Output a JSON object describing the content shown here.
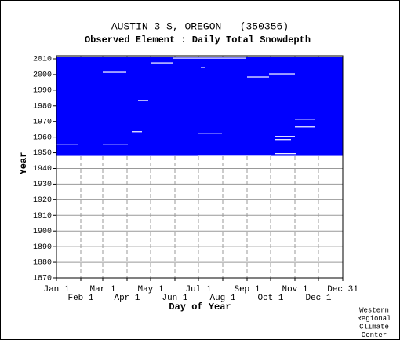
{
  "chart_data": {
    "type": "availability",
    "title": "AUSTIN 3 S, OREGON   (350356)",
    "subtitle": "Observed Element : Daily Total Snowdepth",
    "x_label": "Day of Year",
    "y_label": "Year",
    "footer": [
      "Western",
      "Regional",
      "Climate",
      "Center"
    ],
    "color": "#0000ff",
    "record": [
      1948,
      2010
    ],
    "gaps": [
      [
        1955,
        1,
        28
      ],
      [
        1955,
        60,
        92
      ],
      [
        1963,
        97,
        110
      ],
      [
        1983,
        105,
        118
      ],
      [
        2007,
        121,
        150
      ],
      [
        2001,
        60,
        90
      ],
      [
        2004,
        185,
        190
      ],
      [
        1962,
        182,
        212
      ],
      [
        1948,
        182,
        275
      ],
      [
        1998,
        244,
        272
      ],
      [
        2000,
        272,
        305
      ],
      [
        1971,
        305,
        330
      ],
      [
        1966,
        305,
        330
      ],
      [
        1960,
        279,
        305
      ],
      [
        1958,
        279,
        300
      ],
      [
        1949,
        280,
        307
      ],
      [
        2010,
        150,
        243
      ]
    ],
    "xlim": [
      1,
      366
    ],
    "xticks": [
      {
        "value": 1,
        "label": "Jan 1"
      },
      {
        "value": 32,
        "label": "Feb 1"
      },
      {
        "value": 60,
        "label": "Mar 1"
      },
      {
        "value": 91,
        "label": "Apr 1"
      },
      {
        "value": 121,
        "label": "May 1"
      },
      {
        "value": 152,
        "label": "Jun 1"
      },
      {
        "value": 182,
        "label": "Jul 1"
      },
      {
        "value": 213,
        "label": "Aug 1"
      },
      {
        "value": 244,
        "label": "Sep 1"
      },
      {
        "value": 274,
        "label": "Oct 1"
      },
      {
        "value": 305,
        "label": "Nov 1"
      },
      {
        "value": 335,
        "label": "Dec 1"
      },
      {
        "value": 366,
        "label": "Dec 31"
      }
    ],
    "ylim": [
      1870,
      2012
    ],
    "yticks": [
      1870,
      1880,
      1890,
      1900,
      1910,
      1920,
      1930,
      1940,
      1950,
      1960,
      1970,
      1980,
      1990,
      2000,
      2010
    ],
    "grid": true
  }
}
